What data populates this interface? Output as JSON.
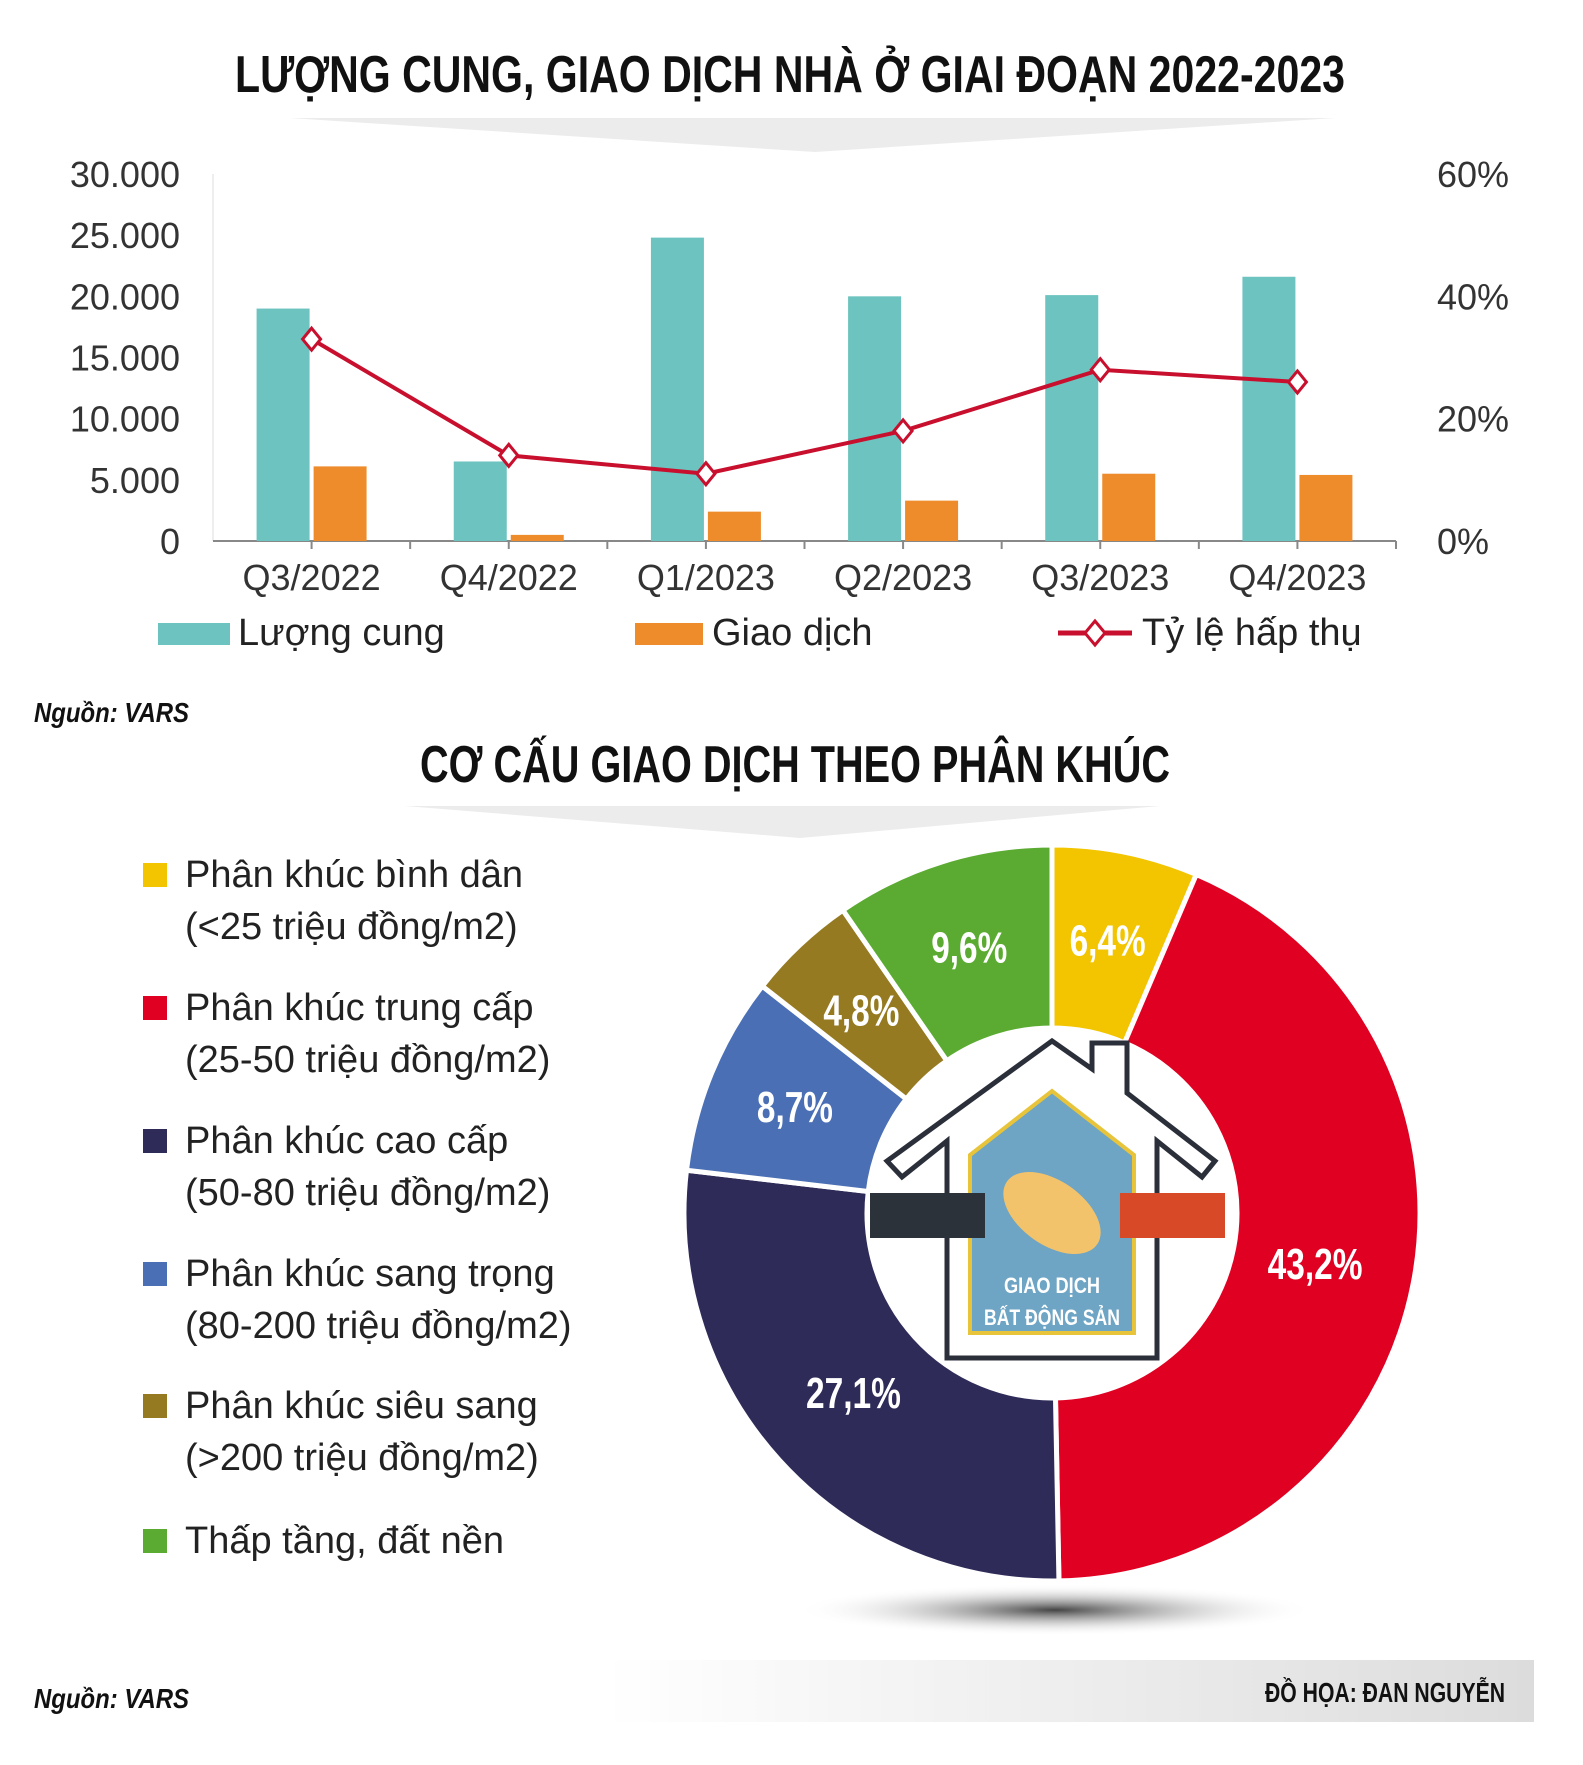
{
  "chart_data": [
    {
      "type": "bar",
      "title": "LƯỢNG CUNG, GIAO DỊCH NHÀ Ở GIAI ĐOẠN 2022-2023",
      "categories": [
        "Q3/2022",
        "Q4/2022",
        "Q1/2023",
        "Q2/2023",
        "Q3/2023",
        "Q4/2023"
      ],
      "ylim": [
        0,
        30000
      ],
      "yticks": [
        "0",
        "5.000",
        "10.000",
        "15.000",
        "20.000",
        "25.000",
        "30.000"
      ],
      "y2lim": [
        0,
        60
      ],
      "y2ticks": [
        "0%",
        "20%",
        "40%",
        "60%"
      ],
      "series": [
        {
          "name": "Lượng cung",
          "type": "bar",
          "color": "#6cc3bf",
          "values": [
            19000,
            6500,
            24800,
            20000,
            20100,
            21600
          ]
        },
        {
          "name": "Giao dịch",
          "type": "bar",
          "color": "#ee8c2c",
          "values": [
            6100,
            500,
            2400,
            3300,
            5500,
            5400
          ]
        },
        {
          "name": "Tỷ lệ hấp thụ",
          "type": "line",
          "axis": "right",
          "unit": "%",
          "color": "#c8102e",
          "values": [
            33,
            14,
            11,
            18,
            28,
            26
          ]
        }
      ],
      "legend": "bottom",
      "source": "Nguồn: VARS"
    },
    {
      "type": "pie",
      "title": "CƠ CẤU GIAO DỊCH THEO PHÂN KHÚC",
      "slices": [
        {
          "label": "Phân khúc bình dân",
          "sub": "(<25 triệu đồng/m2)",
          "value": 6.4,
          "text": "6,4%",
          "color": "#f2c500"
        },
        {
          "label": "Phân khúc trung cấp",
          "sub": "(25-50 triệu đồng/m2)",
          "value": 43.2,
          "text": "43,2%",
          "color": "#e00022"
        },
        {
          "label": "Phân khúc cao cấp",
          "sub": "(50-80 triệu đồng/m2)",
          "value": 27.1,
          "text": "27,1%",
          "color": "#2e2b58"
        },
        {
          "label": "Phân khúc sang trọng",
          "sub": "(80-200 triệu đồng/m2)",
          "value": 8.7,
          "text": "8,7%",
          "color": "#4a6fb5"
        },
        {
          "label": "Phân khúc siêu sang",
          "sub": "(>200 triệu đồng/m2)",
          "value": 4.8,
          "text": "4,8%",
          "color": "#957a22"
        },
        {
          "label": "Thấp tầng, đất nền",
          "sub": "",
          "value": 9.6,
          "text": "9,6%",
          "color": "#5bab32"
        }
      ],
      "center_text": [
        "GIAO DỊCH",
        "BẤT ĐỘNG SẢN"
      ],
      "source": "Nguồn: VARS"
    }
  ],
  "credit": "ĐỒ HỌA: ĐAN NGUYỄN"
}
